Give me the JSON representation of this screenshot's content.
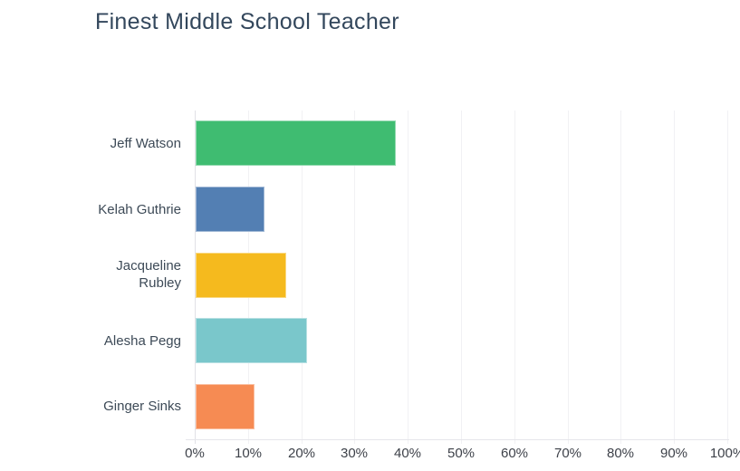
{
  "title": "Finest Middle School Teacher",
  "chart_data": {
    "type": "bar",
    "orientation": "horizontal",
    "title": "Finest Middle School Teacher",
    "categories": [
      "Jeff Watson",
      "Kelah Guthrie",
      "Jacqueline Rubley",
      "Alesha Pegg",
      "Ginger Sinks"
    ],
    "values": [
      37.5,
      13,
      17,
      21,
      11
    ],
    "value_unit": "%",
    "bar_colors": [
      "#3fbc71",
      "#537fb3",
      "#f5ba1e",
      "#7ac7cb",
      "#f68b53"
    ],
    "x_ticks": [
      "0%",
      "10%",
      "20%",
      "30%",
      "40%",
      "50%",
      "60%",
      "70%",
      "80%",
      "90%",
      "100%"
    ],
    "xlim": [
      0,
      100
    ],
    "xlabel": "",
    "ylabel": "",
    "grid": "vertical-only",
    "legend": "none"
  },
  "colors": {
    "background": "#ffffff",
    "title_text": "#33475c",
    "category_text": "#3d4a57",
    "tick_text": "#3e424a",
    "gridline": "#f1f1f4",
    "axis_line": "#e1e1e6"
  }
}
